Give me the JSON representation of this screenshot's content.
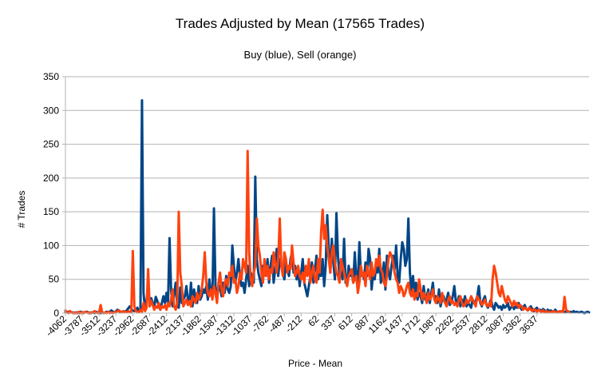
{
  "chart_data": {
    "type": "line",
    "title": "Trades Adjusted by Mean (17565 Trades)",
    "subtitle": "Buy (blue), Sell (orange)",
    "xlabel": "Price - Mean",
    "ylabel": "# Trades",
    "ylim": [
      0,
      350
    ],
    "yticks": [
      0,
      50,
      100,
      150,
      200,
      250,
      300,
      350
    ],
    "x_start": -4062,
    "x_step": 25,
    "x_tick_labels": [
      "-4062",
      "-3787",
      "-3512",
      "-3237",
      "-2962",
      "-2687",
      "-2412",
      "-2137",
      "-1862",
      "-1587",
      "-1312",
      "-1037",
      "-762",
      "-487",
      "-212",
      "62",
      "337",
      "612",
      "887",
      "1162",
      "1437",
      "1712",
      "1987",
      "2262",
      "2537",
      "2812",
      "3087",
      "3362",
      "3637"
    ],
    "grid": true,
    "legend": "none",
    "series": [
      {
        "color": "#004586",
        "values": [
          2,
          1,
          2,
          1,
          1,
          1,
          0,
          1,
          1,
          0,
          2,
          1,
          1,
          1,
          2,
          1,
          0,
          1,
          1,
          0,
          2,
          1,
          1,
          0,
          1,
          0,
          1,
          2,
          1,
          2,
          4,
          2,
          1,
          3,
          5,
          3,
          1,
          2,
          3,
          2,
          4,
          7,
          10,
          6,
          4,
          3,
          5,
          8,
          3,
          6,
          315,
          30,
          5,
          20,
          33,
          20,
          22,
          15,
          10,
          24,
          18,
          10,
          5,
          15,
          25,
          15,
          30,
          14,
          111,
          35,
          10,
          28,
          45,
          12,
          8,
          38,
          15,
          20,
          25,
          40,
          20,
          15,
          45,
          10,
          35,
          20,
          15,
          40,
          20,
          25,
          35,
          30,
          40,
          20,
          50,
          30,
          25,
          155,
          40,
          25,
          35,
          40,
          25,
          45,
          30,
          55,
          35,
          30,
          40,
          100,
          70,
          45,
          60,
          80,
          55,
          40,
          45,
          30,
          50,
          70,
          40,
          60,
          55,
          45,
          202,
          80,
          60,
          50,
          40,
          70,
          60,
          55,
          80,
          45,
          70,
          85,
          45,
          65,
          95,
          55,
          80,
          70,
          60,
          50,
          75,
          65,
          55,
          80,
          90,
          60,
          70,
          50,
          65,
          40,
          60,
          80,
          45,
          35,
          25,
          40,
          55,
          75,
          45,
          65,
          85,
          50,
          60,
          55,
          80,
          40,
          70,
          145,
          95,
          60,
          110,
          75,
          50,
          148,
          85,
          55,
          60,
          50,
          110,
          45,
          45,
          70,
          55,
          60,
          45,
          90,
          50,
          45,
          105,
          55,
          60,
          50,
          75,
          55,
          95,
          80,
          35,
          60,
          50,
          70,
          60,
          95,
          45,
          55,
          75,
          35,
          85,
          60,
          50,
          70,
          85,
          65,
          100,
          55,
          45,
          80,
          105,
          95,
          70,
          80,
          140,
          60,
          30,
          55,
          30,
          45,
          20,
          30,
          25,
          15,
          40,
          20,
          25,
          35,
          15,
          30,
          45,
          20,
          25,
          15,
          35,
          10,
          20,
          25,
          15,
          20,
          30,
          12,
          15,
          25,
          40,
          18,
          15,
          25,
          10,
          20,
          15,
          25,
          10,
          15,
          12,
          8,
          20,
          15,
          18,
          25,
          40,
          15,
          10,
          20,
          25,
          12,
          8,
          15,
          20,
          10,
          5,
          15,
          12,
          8,
          10,
          5,
          12,
          8,
          10,
          15,
          5,
          8,
          12,
          6,
          10,
          8,
          15,
          10,
          5,
          8,
          12,
          6,
          4,
          8,
          10,
          5,
          3,
          6,
          8,
          4,
          5,
          3,
          6,
          4,
          2,
          5,
          3,
          4,
          2,
          3,
          5,
          2,
          1,
          3,
          2,
          4,
          1,
          2,
          3,
          1,
          2,
          1,
          3,
          1,
          2,
          1,
          1,
          2,
          1,
          0,
          1,
          2,
          1
        ]
      },
      {
        "color": "#ff420e",
        "values": [
          4,
          1,
          0,
          3,
          1,
          0,
          1,
          0,
          0,
          2,
          0,
          1,
          0,
          2,
          1,
          0,
          1,
          0,
          1,
          3,
          1,
          0,
          1,
          12,
          1,
          0,
          1,
          0,
          2,
          0,
          1,
          0,
          1,
          2,
          3,
          4,
          2,
          1,
          3,
          2,
          1,
          3,
          2,
          1,
          92,
          10,
          3,
          2,
          1,
          5,
          2,
          15,
          3,
          8,
          65,
          10,
          18,
          12,
          5,
          10,
          8,
          15,
          5,
          10,
          8,
          12,
          5,
          15,
          10,
          20,
          35,
          10,
          5,
          15,
          150,
          60,
          40,
          10,
          15,
          20,
          12,
          18,
          10,
          25,
          20,
          15,
          30,
          20,
          25,
          35,
          55,
          90,
          45,
          30,
          25,
          35,
          20,
          40,
          30,
          15,
          45,
          60,
          35,
          25,
          45,
          50,
          40,
          60,
          55,
          70,
          45,
          50,
          30,
          40,
          60,
          50,
          80,
          70,
          60,
          240,
          90,
          50,
          40,
          60,
          70,
          140,
          100,
          85,
          60,
          45,
          80,
          55,
          70,
          50,
          65,
          60,
          90,
          75,
          60,
          80,
          140,
          70,
          55,
          90,
          80,
          60,
          70,
          65,
          100,
          75,
          55,
          60,
          70,
          55,
          50,
          60,
          45,
          70,
          55,
          80,
          45,
          60,
          70,
          50,
          45,
          80,
          60,
          120,
          153,
          110,
          130,
          100,
          80,
          60,
          90,
          100,
          75,
          60,
          55,
          45,
          80,
          70,
          60,
          50,
          40,
          55,
          60,
          65,
          45,
          50,
          55,
          30,
          45,
          70,
          55,
          60,
          40,
          70,
          60,
          50,
          75,
          55,
          60,
          80,
          70,
          85,
          65,
          60,
          45,
          40,
          55,
          80,
          90,
          85,
          75,
          60,
          50,
          45,
          30,
          40,
          35,
          25,
          30,
          40,
          45,
          30,
          25,
          35,
          20,
          30,
          25,
          50,
          35,
          20,
          30,
          25,
          15,
          30,
          20,
          25,
          35,
          20,
          15,
          25,
          20,
          15,
          30,
          20,
          15,
          10,
          20,
          25,
          15,
          18,
          12,
          15,
          10,
          20,
          25,
          15,
          10,
          12,
          20,
          15,
          18,
          25,
          20,
          15,
          10,
          25,
          20,
          18,
          12,
          15,
          20,
          12,
          10,
          15,
          10,
          50,
          70,
          60,
          45,
          30,
          25,
          40,
          30,
          20,
          15,
          25,
          20,
          15,
          10,
          18,
          12,
          15,
          8,
          12,
          10,
          5,
          8,
          6,
          4,
          8,
          5,
          3,
          6,
          4,
          2,
          5,
          3,
          2,
          4,
          1,
          3,
          2,
          1,
          2,
          1,
          3,
          2,
          1,
          2,
          3,
          2,
          1,
          24,
          5,
          3,
          2
        ]
      }
    ]
  }
}
